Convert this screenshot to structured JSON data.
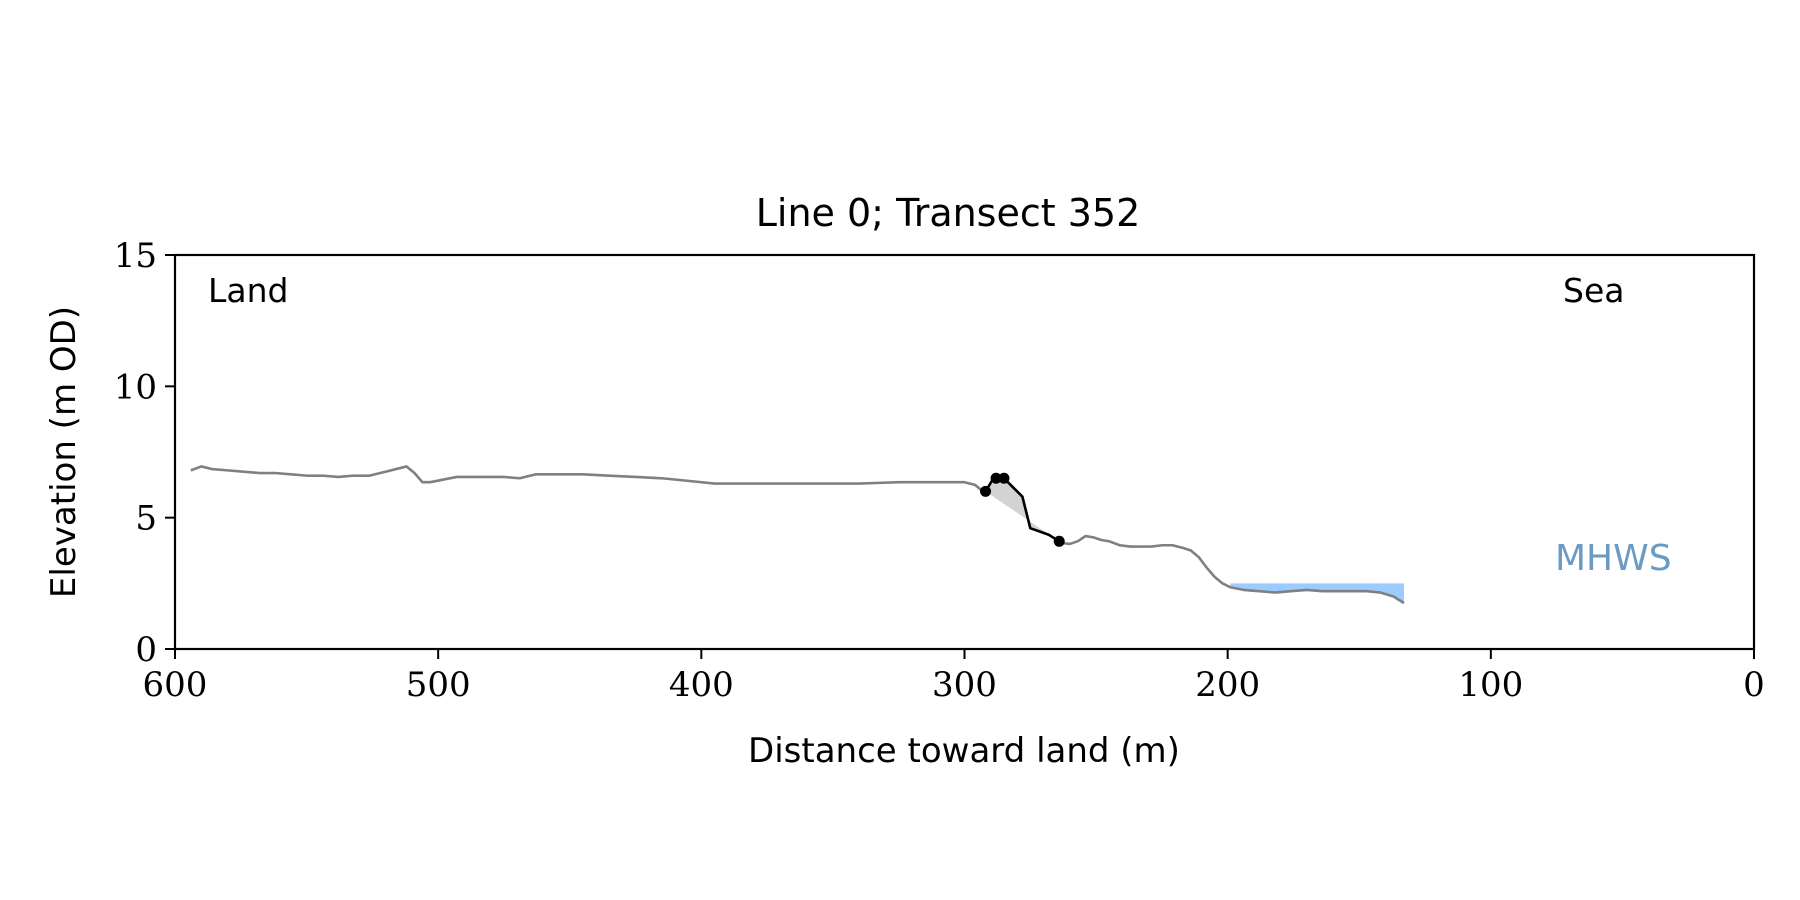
{
  "chart_data": {
    "type": "line",
    "title": "Line 0; Transect 352",
    "xlabel": "Distance toward land (m)",
    "ylabel": "Elevation (m OD)",
    "xlim": [
      600,
      0
    ],
    "ylim": [
      0,
      15
    ],
    "x_ticks": [
      600,
      500,
      400,
      300,
      200,
      100,
      0
    ],
    "y_ticks": [
      0,
      5,
      10,
      15
    ],
    "grid": false,
    "annotations": {
      "land": "Land",
      "sea": "Sea",
      "mhws": "MHWS"
    },
    "colors": {
      "profile": "#808080",
      "feature": "#000000",
      "feature_fill": "#d3d3d3",
      "mhws_fill": "#9cccff",
      "mhws_label": "#6b9ac4"
    },
    "mhws": {
      "elevation": 2.5,
      "x_start": 199,
      "x_end": 133
    },
    "series": [
      {
        "role": "profile",
        "x": [
          594,
          590,
          586,
          580,
          574,
          568,
          562,
          556,
          550,
          544,
          538,
          532,
          526,
          520,
          516,
          512,
          509,
          506,
          503,
          498,
          493,
          487,
          481,
          475,
          469,
          463,
          455,
          445,
          435,
          425,
          415,
          405,
          395,
          385,
          370,
          355,
          340,
          325,
          310,
          300,
          296,
          293
        ],
        "y": [
          6.8,
          6.95,
          6.85,
          6.8,
          6.75,
          6.7,
          6.7,
          6.65,
          6.6,
          6.6,
          6.55,
          6.6,
          6.6,
          6.75,
          6.85,
          6.95,
          6.7,
          6.35,
          6.35,
          6.45,
          6.55,
          6.55,
          6.55,
          6.55,
          6.5,
          6.65,
          6.65,
          6.65,
          6.6,
          6.55,
          6.5,
          6.4,
          6.3,
          6.3,
          6.3,
          6.3,
          6.3,
          6.35,
          6.35,
          6.35,
          6.25,
          6.0
        ]
      },
      {
        "role": "profile",
        "x": [
          264,
          260,
          257,
          254,
          251,
          248,
          245,
          241,
          237,
          233,
          229,
          225,
          221,
          217,
          214,
          211,
          208,
          205,
          202,
          199,
          194,
          188,
          182,
          176,
          170,
          164,
          158,
          152,
          147,
          142,
          137,
          133
        ],
        "y": [
          4.05,
          4.0,
          4.1,
          4.3,
          4.25,
          4.15,
          4.1,
          3.95,
          3.9,
          3.9,
          3.9,
          3.95,
          3.95,
          3.85,
          3.75,
          3.5,
          3.1,
          2.75,
          2.5,
          2.35,
          2.25,
          2.2,
          2.15,
          2.2,
          2.25,
          2.2,
          2.2,
          2.2,
          2.2,
          2.15,
          2.0,
          1.75
        ]
      },
      {
        "role": "feature",
        "x": [
          292,
          289,
          286,
          284,
          278,
          275,
          268,
          264
        ],
        "y": [
          6.0,
          6.5,
          6.5,
          6.4,
          5.8,
          4.6,
          4.35,
          4.1
        ]
      }
    ],
    "feature_points": [
      {
        "x": 292,
        "y": 6.0
      },
      {
        "x": 288,
        "y": 6.5
      },
      {
        "x": 285,
        "y": 6.5
      },
      {
        "x": 264,
        "y": 4.1
      }
    ]
  }
}
